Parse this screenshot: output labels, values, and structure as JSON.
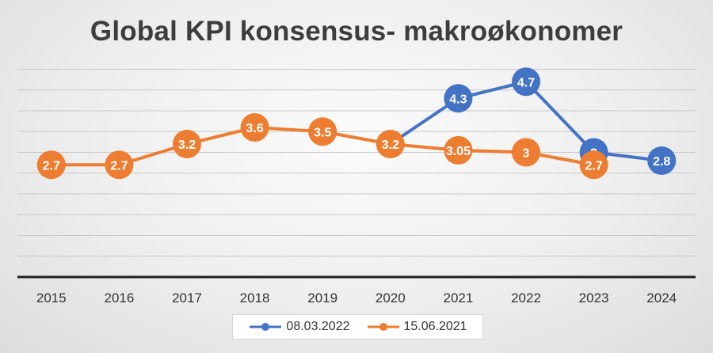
{
  "chart_data": {
    "type": "line",
    "title": "Global KPI konsensus- makroøkonomer",
    "categories": [
      "2015",
      "2016",
      "2017",
      "2018",
      "2019",
      "2020",
      "2021",
      "2022",
      "2023",
      "2024"
    ],
    "ylim": [
      0,
      5.2
    ],
    "grid": true,
    "legend_position": "bottom",
    "series": [
      {
        "name": "08.03.2022",
        "color": "#4472C4",
        "values": [
          null,
          null,
          null,
          null,
          null,
          3.2,
          4.3,
          4.7,
          3,
          2.8
        ],
        "labels": [
          null,
          null,
          null,
          null,
          null,
          null,
          "4.3",
          "4.7",
          "3",
          "2.8"
        ]
      },
      {
        "name": "15.06.2021",
        "color": "#ED7D31",
        "values": [
          2.7,
          2.7,
          3.2,
          3.6,
          3.5,
          3.2,
          3.05,
          3,
          2.7,
          null
        ],
        "labels": [
          "2.7",
          "2.7",
          "3.2",
          "3.6",
          "3.5",
          "3.2",
          "3.05",
          "3",
          "2.7",
          null
        ]
      }
    ]
  }
}
